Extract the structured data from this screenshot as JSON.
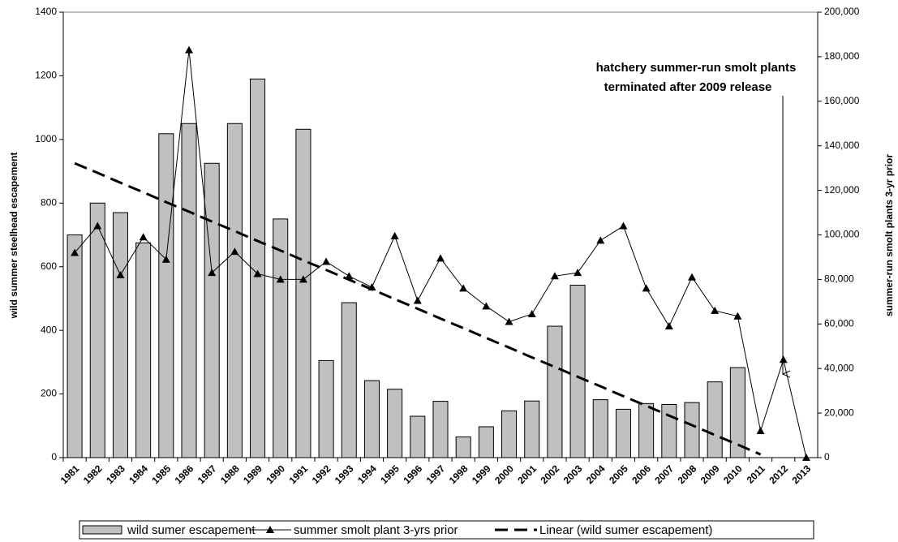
{
  "chart_data": {
    "type": "bar",
    "categories": [
      "1981",
      "1982",
      "1983",
      "1984",
      "1985",
      "1986",
      "1987",
      "1988",
      "1989",
      "1990",
      "1991",
      "1992",
      "1993",
      "1994",
      "1995",
      "1996",
      "1997",
      "1998",
      "1999",
      "2000",
      "2001",
      "2002",
      "2003",
      "2004",
      "2005",
      "2006",
      "2007",
      "2008",
      "2009",
      "2010",
      "2011",
      "2012",
      "2013"
    ],
    "series": [
      {
        "name": "wild sumer escapement",
        "kind": "bar",
        "color": "#c0c0c0",
        "axis": "y",
        "values": [
          700,
          800,
          770,
          675,
          1018,
          1050,
          925,
          1050,
          1190,
          750,
          1032,
          305,
          487,
          242,
          215,
          130,
          177,
          65,
          97,
          147,
          178,
          413,
          542,
          182,
          152,
          170,
          167,
          173,
          238,
          283,
          null,
          null,
          null
        ]
      },
      {
        "name": "summer smolt plant 3-yrs prior",
        "kind": "line",
        "marker": "triangle",
        "color": "#000000",
        "axis": "y2",
        "values": [
          92000,
          104000,
          82000,
          99000,
          89000,
          183000,
          83000,
          92500,
          82500,
          80000,
          80000,
          88000,
          81500,
          76500,
          99500,
          70500,
          89500,
          76000,
          68000,
          61000,
          64500,
          81500,
          83000,
          97500,
          104000,
          76000,
          59000,
          81000,
          66000,
          63500,
          12000,
          44000,
          0
        ]
      },
      {
        "name": "Linear (wild sumer escapement)",
        "kind": "line",
        "dash": true,
        "color": "#000000",
        "axis": "y",
        "values": [
          925,
          895,
          864,
          834,
          803,
          773,
          742,
          712,
          681,
          651,
          620,
          590,
          559,
          529,
          498,
          468,
          437,
          407,
          376,
          346,
          315,
          285,
          254,
          224,
          193,
          163,
          132,
          102,
          71,
          41,
          10,
          null,
          null
        ]
      }
    ],
    "ylabel": "wild summer steelhead escapement",
    "y2label": "summer-run smolt plants 3-yr prior",
    "ylim": [
      0,
      1400
    ],
    "yticks": [
      0,
      200,
      400,
      600,
      800,
      1000,
      1200,
      1400
    ],
    "y2lim": [
      0,
      200000
    ],
    "y2ticks": [
      0,
      {
        "value": 20000,
        "label": "20,000"
      },
      {
        "value": 40000,
        "label": "40,000"
      },
      {
        "value": 60000,
        "label": "60,000"
      },
      {
        "value": 80000,
        "label": "80,000"
      },
      {
        "value": 100000,
        "label": "100,000"
      },
      {
        "value": 120000,
        "label": "120,000"
      },
      {
        "value": 140000,
        "label": "140,000"
      },
      {
        "value": 160000,
        "label": "160,000"
      },
      {
        "value": 180000,
        "label": "180,000"
      },
      {
        "value": 200000,
        "label": "200,000"
      }
    ],
    "annotation": [
      "hatchery summer-run smolt plants",
      "terminated after 2009 release"
    ],
    "grid": false
  }
}
